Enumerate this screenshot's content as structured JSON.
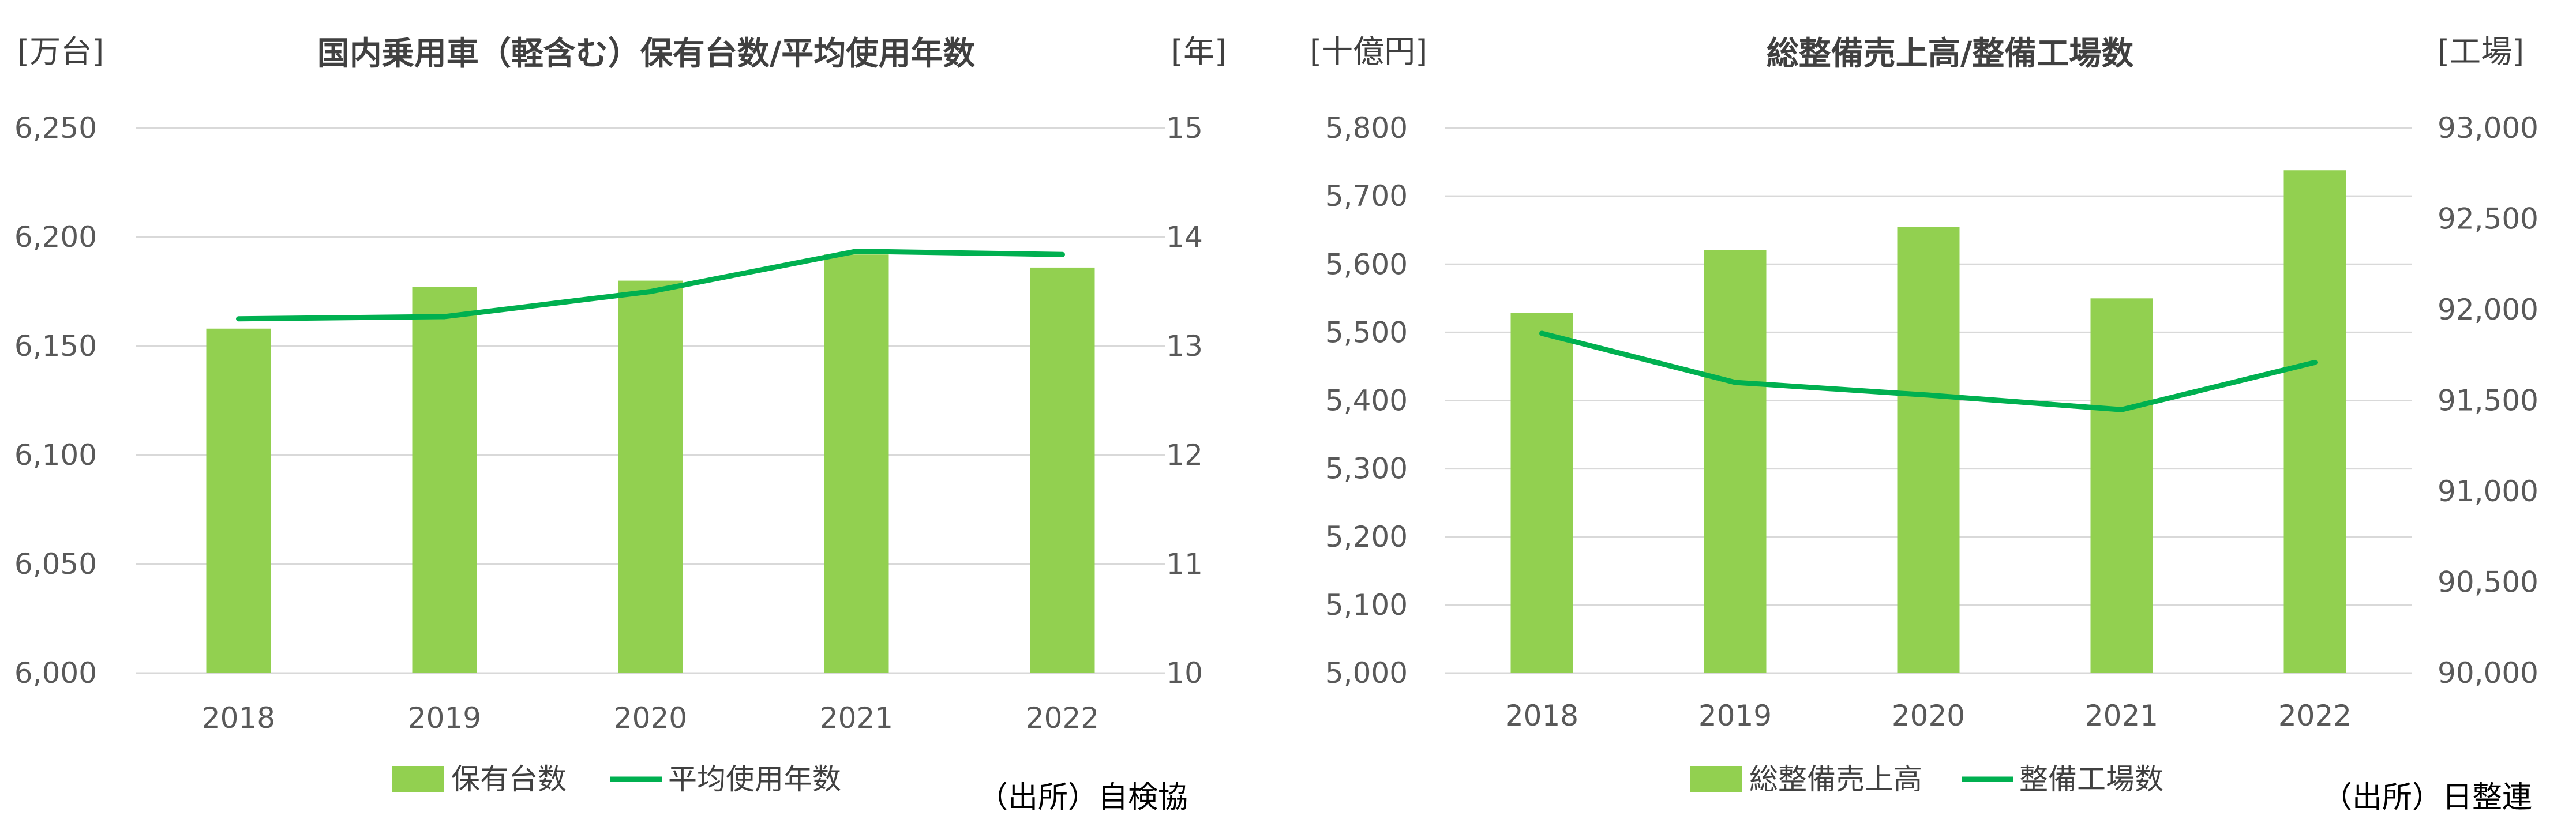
{
  "chart_data": [
    {
      "type": "bar+line",
      "title": "国内乗用車（軽含む）保有台数/平均使用年数",
      "left_unit": "[万台]",
      "right_unit": "[年]",
      "categories": [
        "2018",
        "2019",
        "2020",
        "2021",
        "2022"
      ],
      "y_left_ticks": [
        "6,000",
        "6,050",
        "6,100",
        "6,150",
        "6,200",
        "6,250"
      ],
      "y_right_ticks": [
        "10",
        "11",
        "12",
        "13",
        "14",
        "15"
      ],
      "ylim_left": [
        6000,
        6250
      ],
      "ylim_right": [
        10,
        15
      ],
      "grid": true,
      "legend_position": "bottom",
      "series": [
        {
          "name": "保有台数",
          "kind": "bar",
          "axis": "left",
          "color": "#92d050",
          "values": [
            6158,
            6177,
            6180,
            6192,
            6186
          ]
        },
        {
          "name": "平均使用年数",
          "kind": "line",
          "axis": "right",
          "color": "#00b050",
          "values": [
            13.25,
            13.27,
            13.5,
            13.87,
            13.84
          ]
        }
      ],
      "source": "（出所）自検協"
    },
    {
      "type": "bar+line",
      "title": "総整備売上高/整備工場数",
      "left_unit": "[十億円]",
      "right_unit": "[工場]",
      "categories": [
        "2018",
        "2019",
        "2020",
        "2021",
        "2022"
      ],
      "y_left_ticks": [
        "5,000",
        "5,100",
        "5,200",
        "5,300",
        "5,400",
        "5,500",
        "5,600",
        "5,700",
        "5,800"
      ],
      "y_right_ticks": [
        "90,000",
        "90,500",
        "91,000",
        "91,500",
        "92,000",
        "92,500",
        "93,000"
      ],
      "ylim_left": [
        5000,
        5800
      ],
      "ylim_right": [
        90000,
        93000
      ],
      "grid": true,
      "legend_position": "bottom",
      "series": [
        {
          "name": "総整備売上高",
          "kind": "bar",
          "axis": "left",
          "color": "#92d050",
          "values": [
            5529,
            5621,
            5655,
            5550,
            5738
          ]
        },
        {
          "name": "整備工場数",
          "kind": "line",
          "axis": "right",
          "color": "#00b050",
          "values": [
            91870,
            91600,
            91530,
            91450,
            91710
          ]
        }
      ],
      "source": "（出所）日整連"
    }
  ]
}
